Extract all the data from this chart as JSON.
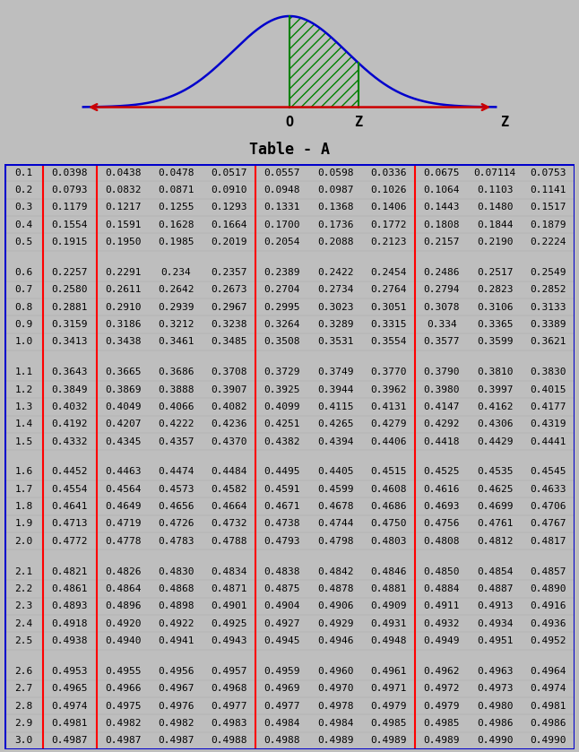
{
  "title": "Table - A",
  "bg_color": "#bebebe",
  "rows": [
    {
      "z": "0.1",
      "vals": [
        "0.0398",
        "0.0438",
        "0.0478",
        "0.0517",
        "0.0557",
        "0.0598",
        "0.0336",
        "0.0675",
        "0.07114",
        "0.0753"
      ]
    },
    {
      "z": "0.2",
      "vals": [
        "0.0793",
        "0.0832",
        "0.0871",
        "0.0910",
        "0.0948",
        "0.0987",
        "0.1026",
        "0.1064",
        "0.1103",
        "0.1141"
      ]
    },
    {
      "z": "0.3",
      "vals": [
        "0.1179",
        "0.1217",
        "0.1255",
        "0.1293",
        "0.1331",
        "0.1368",
        "0.1406",
        "0.1443",
        "0.1480",
        "0.1517"
      ]
    },
    {
      "z": "0.4",
      "vals": [
        "0.1554",
        "0.1591",
        "0.1628",
        "0.1664",
        "0.1700",
        "0.1736",
        "0.1772",
        "0.1808",
        "0.1844",
        "0.1879"
      ]
    },
    {
      "z": "0.5",
      "vals": [
        "0.1915",
        "0.1950",
        "0.1985",
        "0.2019",
        "0.2054",
        "0.2088",
        "0.2123",
        "0.2157",
        "0.2190",
        "0.2224"
      ]
    },
    {
      "z": "0.6",
      "vals": [
        "0.2257",
        "0.2291",
        "0.234",
        "0.2357",
        "0.2389",
        "0.2422",
        "0.2454",
        "0.2486",
        "0.2517",
        "0.2549"
      ]
    },
    {
      "z": "0.7",
      "vals": [
        "0.2580",
        "0.2611",
        "0.2642",
        "0.2673",
        "0.2704",
        "0.2734",
        "0.2764",
        "0.2794",
        "0.2823",
        "0.2852"
      ]
    },
    {
      "z": "0.8",
      "vals": [
        "0.2881",
        "0.2910",
        "0.2939",
        "0.2967",
        "0.2995",
        "0.3023",
        "0.3051",
        "0.3078",
        "0.3106",
        "0.3133"
      ]
    },
    {
      "z": "0.9",
      "vals": [
        "0.3159",
        "0.3186",
        "0.3212",
        "0.3238",
        "0.3264",
        "0.3289",
        "0.3315",
        "0.334",
        "0.3365",
        "0.3389"
      ]
    },
    {
      "z": "1.0",
      "vals": [
        "0.3413",
        "0.3438",
        "0.3461",
        "0.3485",
        "0.3508",
        "0.3531",
        "0.3554",
        "0.3577",
        "0.3599",
        "0.3621"
      ]
    },
    {
      "z": "1.1",
      "vals": [
        "0.3643",
        "0.3665",
        "0.3686",
        "0.3708",
        "0.3729",
        "0.3749",
        "0.3770",
        "0.3790",
        "0.3810",
        "0.3830"
      ]
    },
    {
      "z": "1.2",
      "vals": [
        "0.3849",
        "0.3869",
        "0.3888",
        "0.3907",
        "0.3925",
        "0.3944",
        "0.3962",
        "0.3980",
        "0.3997",
        "0.4015"
      ]
    },
    {
      "z": "1.3",
      "vals": [
        "0.4032",
        "0.4049",
        "0.4066",
        "0.4082",
        "0.4099",
        "0.4115",
        "0.4131",
        "0.4147",
        "0.4162",
        "0.4177"
      ]
    },
    {
      "z": "1.4",
      "vals": [
        "0.4192",
        "0.4207",
        "0.4222",
        "0.4236",
        "0.4251",
        "0.4265",
        "0.4279",
        "0.4292",
        "0.4306",
        "0.4319"
      ]
    },
    {
      "z": "1.5",
      "vals": [
        "0.4332",
        "0.4345",
        "0.4357",
        "0.4370",
        "0.4382",
        "0.4394",
        "0.4406",
        "0.4418",
        "0.4429",
        "0.4441"
      ]
    },
    {
      "z": "1.6",
      "vals": [
        "0.4452",
        "0.4463",
        "0.4474",
        "0.4484",
        "0.4495",
        "0.4405",
        "0.4515",
        "0.4525",
        "0.4535",
        "0.4545"
      ]
    },
    {
      "z": "1.7",
      "vals": [
        "0.4554",
        "0.4564",
        "0.4573",
        "0.4582",
        "0.4591",
        "0.4599",
        "0.4608",
        "0.4616",
        "0.4625",
        "0.4633"
      ]
    },
    {
      "z": "1.8",
      "vals": [
        "0.4641",
        "0.4649",
        "0.4656",
        "0.4664",
        "0.4671",
        "0.4678",
        "0.4686",
        "0.4693",
        "0.4699",
        "0.4706"
      ]
    },
    {
      "z": "1.9",
      "vals": [
        "0.4713",
        "0.4719",
        "0.4726",
        "0.4732",
        "0.4738",
        "0.4744",
        "0.4750",
        "0.4756",
        "0.4761",
        "0.4767"
      ]
    },
    {
      "z": "2.0",
      "vals": [
        "0.4772",
        "0.4778",
        "0.4783",
        "0.4788",
        "0.4793",
        "0.4798",
        "0.4803",
        "0.4808",
        "0.4812",
        "0.4817"
      ]
    },
    {
      "z": "2.1",
      "vals": [
        "0.4821",
        "0.4826",
        "0.4830",
        "0.4834",
        "0.4838",
        "0.4842",
        "0.4846",
        "0.4850",
        "0.4854",
        "0.4857"
      ]
    },
    {
      "z": "2.2",
      "vals": [
        "0.4861",
        "0.4864",
        "0.4868",
        "0.4871",
        "0.4875",
        "0.4878",
        "0.4881",
        "0.4884",
        "0.4887",
        "0.4890"
      ]
    },
    {
      "z": "2.3",
      "vals": [
        "0.4893",
        "0.4896",
        "0.4898",
        "0.4901",
        "0.4904",
        "0.4906",
        "0.4909",
        "0.4911",
        "0.4913",
        "0.4916"
      ]
    },
    {
      "z": "2.4",
      "vals": [
        "0.4918",
        "0.4920",
        "0.4922",
        "0.4925",
        "0.4927",
        "0.4929",
        "0.4931",
        "0.4932",
        "0.4934",
        "0.4936"
      ]
    },
    {
      "z": "2.5",
      "vals": [
        "0.4938",
        "0.4940",
        "0.4941",
        "0.4943",
        "0.4945",
        "0.4946",
        "0.4948",
        "0.4949",
        "0.4951",
        "0.4952"
      ]
    },
    {
      "z": "2.6",
      "vals": [
        "0.4953",
        "0.4955",
        "0.4956",
        "0.4957",
        "0.4959",
        "0.4960",
        "0.4961",
        "0.4962",
        "0.4963",
        "0.4964"
      ]
    },
    {
      "z": "2.7",
      "vals": [
        "0.4965",
        "0.4966",
        "0.4967",
        "0.4968",
        "0.4969",
        "0.4970",
        "0.4971",
        "0.4972",
        "0.4973",
        "0.4974"
      ]
    },
    {
      "z": "2.8",
      "vals": [
        "0.4974",
        "0.4975",
        "0.4976",
        "0.4977",
        "0.4977",
        "0.4978",
        "0.4979",
        "0.4979",
        "0.4980",
        "0.4981"
      ]
    },
    {
      "z": "2.9",
      "vals": [
        "0.4981",
        "0.4982",
        "0.4982",
        "0.4983",
        "0.4984",
        "0.4984",
        "0.4985",
        "0.4985",
        "0.4986",
        "0.4986"
      ]
    },
    {
      "z": "3.0",
      "vals": [
        "0.4987",
        "0.4987",
        "0.4987",
        "0.4988",
        "0.4988",
        "0.4989",
        "0.4989",
        "0.4989",
        "0.4990",
        "0.4990"
      ]
    }
  ],
  "group_breaks_after": [
    4,
    9,
    14,
    19,
    24
  ],
  "curve_color": "#0000cc",
  "fill_color": "#008000",
  "arrow_color": "#cc0000",
  "outer_border_color": "#0000cc",
  "red_vlines_after_col": [
    0,
    1,
    4,
    7
  ],
  "font_size_table": 8.0,
  "title_fontsize": 12
}
